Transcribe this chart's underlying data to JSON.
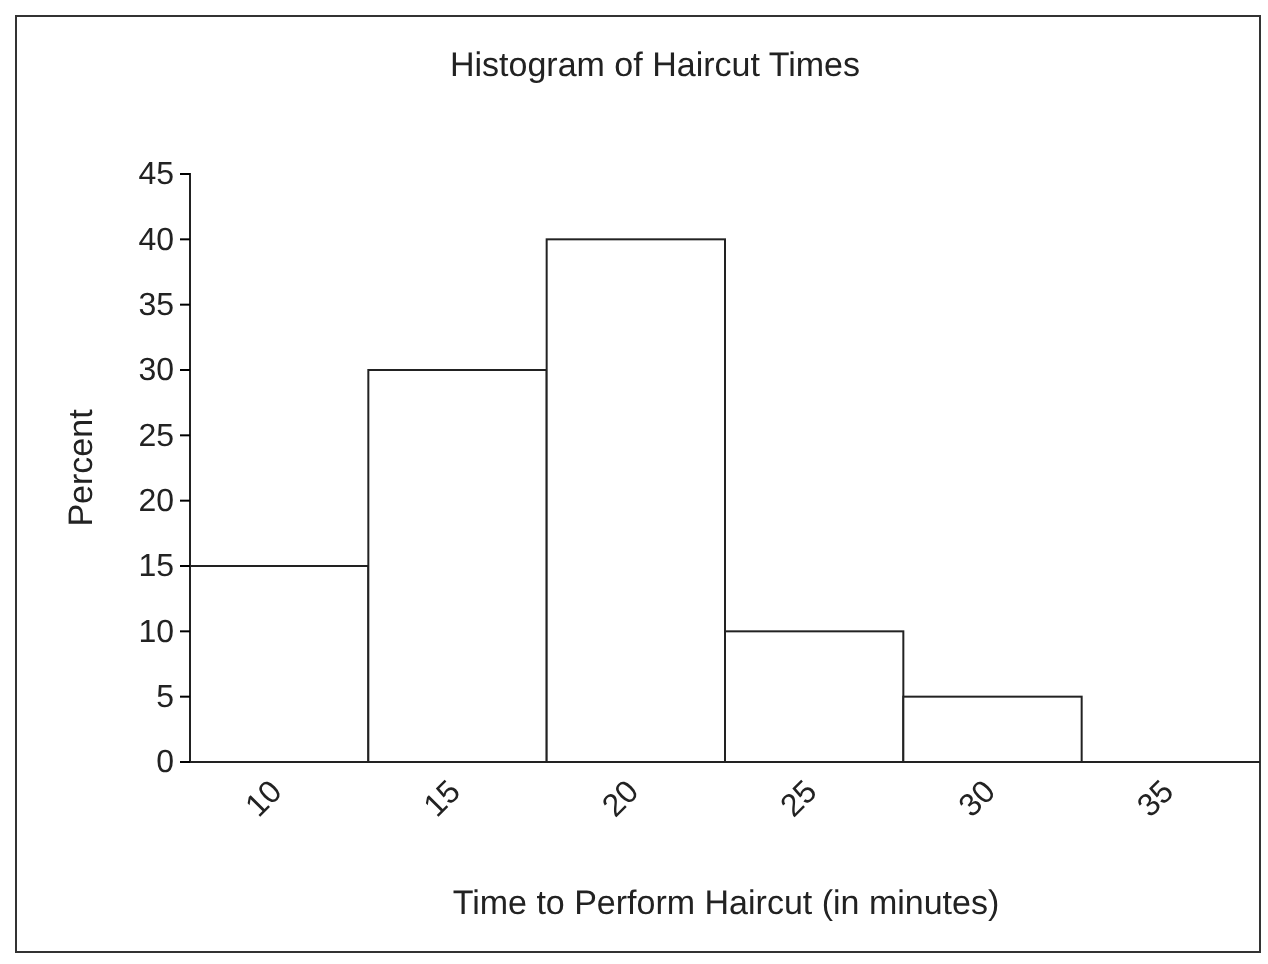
{
  "chart_data": {
    "type": "bar",
    "title": "Histogram of Haircut Times",
    "xlabel": "Time to Perform Haircut (in minutes)",
    "ylabel": "Percent",
    "categories": [
      "10",
      "15",
      "20",
      "25",
      "30",
      "35"
    ],
    "values": [
      15,
      30,
      40,
      10,
      5,
      0
    ],
    "color": "#ffffff",
    "ylim": [
      0,
      45
    ],
    "yticks": [
      0,
      5,
      10,
      15,
      20,
      25,
      30,
      35,
      40,
      45
    ]
  }
}
